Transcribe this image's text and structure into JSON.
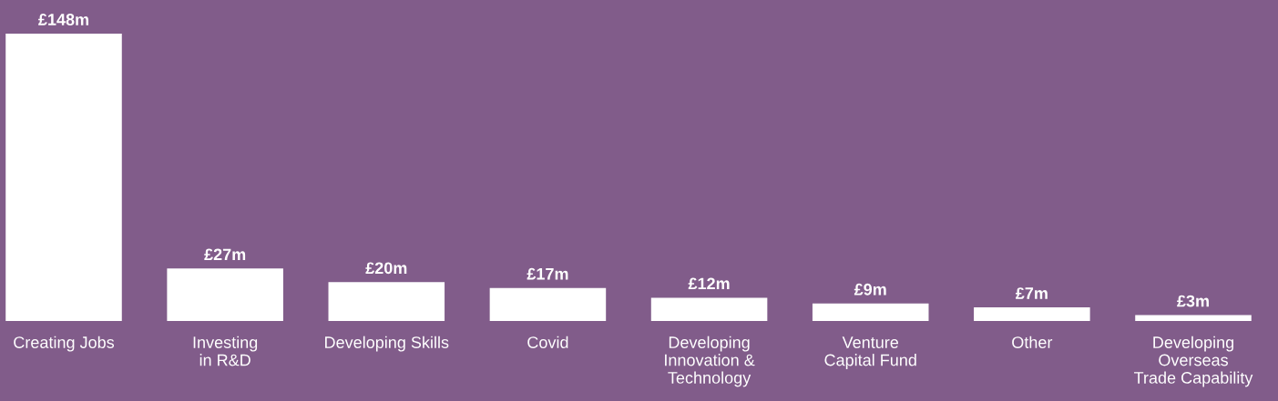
{
  "chart_data": {
    "type": "bar",
    "categories": [
      "Creating Jobs",
      "Investing\nin R&D",
      "Developing Skills",
      "Covid",
      "Developing\nInnovation &\nTechnology",
      "Venture\nCapital Fund",
      "Other",
      "Developing\nOverseas\nTrade Capability"
    ],
    "values": [
      148,
      27,
      20,
      17,
      12,
      9,
      7,
      3
    ],
    "value_labels": [
      "£148m",
      "£27m",
      "£20m",
      "£17m",
      "£12m",
      "£9m",
      "£7m",
      "£3m"
    ],
    "color": "#ffffff"
  }
}
